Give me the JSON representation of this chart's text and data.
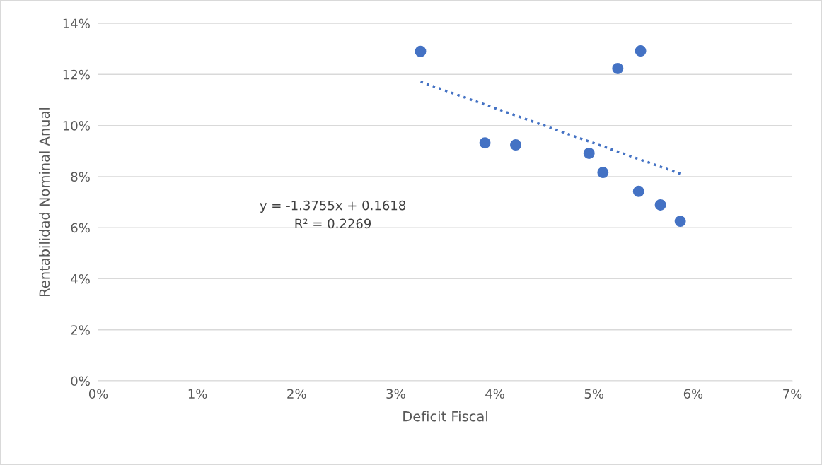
{
  "chart_data": {
    "type": "scatter",
    "xlabel": "Deficit Fiscal",
    "ylabel": "Rentabilidad Nominal Anual",
    "series": [
      {
        "color": "#4472c4",
        "marker": "circle",
        "x": [
          0.0325,
          0.039,
          0.0421,
          0.0495,
          0.0509,
          0.0524,
          0.0547,
          0.0545,
          0.0567,
          0.0587
        ],
        "values": [
          0.129,
          0.0932,
          0.0924,
          0.0891,
          0.0816,
          0.1223,
          0.1292,
          0.0742,
          0.0689,
          0.0625
        ]
      },
      {
        "type": "line",
        "color": "#4472c4",
        "line_style": "dotted",
        "marker": "none",
        "x": [
          0.0325,
          0.0587
        ],
        "values": [
          0.1171,
          0.0811
        ]
      }
    ],
    "annotations": [
      "y = -1.3755x + 0.1618\nR² = 0.2269"
    ],
    "xlim": [
      0,
      0.07
    ],
    "xticks": [
      {
        "value": 0,
        "label": "0%"
      },
      {
        "value": 0.01,
        "label": "1%"
      },
      {
        "value": 0.02,
        "label": "2%"
      },
      {
        "value": 0.03,
        "label": "3%"
      },
      {
        "value": 0.04,
        "label": "4%"
      },
      {
        "value": 0.05,
        "label": "5%"
      },
      {
        "value": 0.06,
        "label": "6%"
      },
      {
        "value": 0.07,
        "label": "7%"
      }
    ],
    "ylim": [
      0,
      0.14
    ],
    "yticks": [
      {
        "value": 0,
        "label": "0%"
      },
      {
        "value": 0.02,
        "label": "2%"
      },
      {
        "value": 0.04,
        "label": "4%"
      },
      {
        "value": 0.06,
        "label": "6%"
      },
      {
        "value": 0.08,
        "label": "8%"
      },
      {
        "value": 0.1,
        "label": "10%"
      },
      {
        "value": 0.12,
        "label": "12%"
      },
      {
        "value": 0.14,
        "label": "14%"
      }
    ],
    "grid": "y",
    "legend": false
  }
}
